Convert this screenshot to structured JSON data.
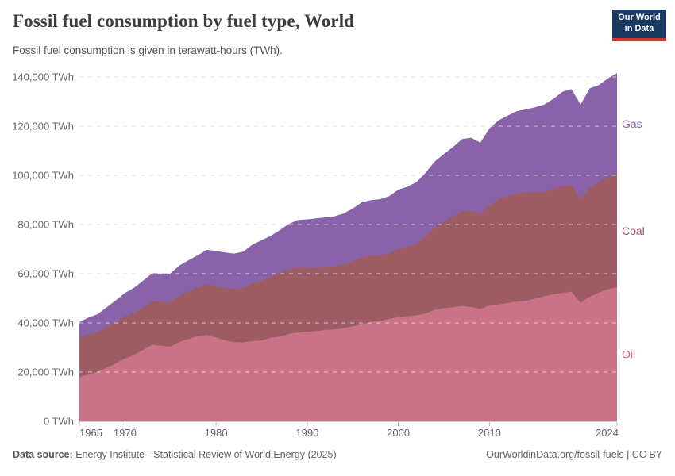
{
  "header": {
    "title": "Fossil fuel consumption by fuel type, World",
    "subtitle": "Fossil fuel consumption is given in terawatt-hours (TWh)."
  },
  "logo": {
    "line1": "Our World",
    "line2": "in Data"
  },
  "footer": {
    "source_label": "Data source:",
    "source_text": "Energy Institute - Statistical Review of World Energy (2025)",
    "credit": "OurWorldinData.org/fossil-fuels | CC BY"
  },
  "colors": {
    "oil_area": "#ca7287",
    "coal_area": "#9d5b63",
    "gas_area": "#8963a9",
    "oil_label": "#cf6a84",
    "coal_label": "#a44e63",
    "gas_label": "#8465ab",
    "logo_bg": "#1a3a62",
    "logo_accent": "#d0342c",
    "grid": "#dcdcdc",
    "axis_line": "#cccccc",
    "tick_mark": "#b5b5b5",
    "axis_text": "#666666"
  },
  "chart_data": {
    "type": "area",
    "stacked": true,
    "title": "Fossil fuel consumption by fuel type, World",
    "unit": "TWh",
    "xlim": [
      1965,
      2024
    ],
    "ylim": [
      0,
      140000
    ],
    "grid": "dashed",
    "legend_position": "right-edge-labels",
    "xticks": [
      1965,
      1970,
      1980,
      1990,
      2000,
      2010,
      2024
    ],
    "yticks": [
      0,
      20000,
      40000,
      60000,
      80000,
      100000,
      120000,
      140000
    ],
    "ytick_labels": [
      "0 TWh",
      "20,000 TWh",
      "40,000 TWh",
      "60,000 TWh",
      "80,000 TWh",
      "100,000 TWh",
      "120,000 TWh",
      "140,000 TWh"
    ],
    "years": [
      1965,
      1966,
      1967,
      1968,
      1969,
      1970,
      1971,
      1972,
      1973,
      1974,
      1975,
      1976,
      1977,
      1978,
      1979,
      1980,
      1981,
      1982,
      1983,
      1984,
      1985,
      1986,
      1987,
      1988,
      1989,
      1990,
      1991,
      1992,
      1993,
      1994,
      1995,
      1996,
      1997,
      1998,
      1999,
      2000,
      2001,
      2002,
      2003,
      2004,
      2005,
      2006,
      2007,
      2008,
      2009,
      2010,
      2011,
      2012,
      2013,
      2014,
      2015,
      2016,
      2017,
      2018,
      2019,
      2020,
      2021,
      2022,
      2023,
      2024
    ],
    "series": [
      {
        "name": "Oil",
        "values": [
          17900,
          19050,
          20150,
          21800,
          23550,
          25500,
          26950,
          29050,
          31150,
          30750,
          30350,
          32300,
          33450,
          34700,
          35050,
          34100,
          32950,
          32150,
          32050,
          32650,
          32850,
          33950,
          34450,
          35550,
          36100,
          36400,
          36600,
          37200,
          37250,
          37950,
          38550,
          39450,
          40450,
          40850,
          41650,
          42350,
          42750,
          43050,
          43850,
          45350,
          45950,
          46350,
          46900,
          46450,
          45650,
          47050,
          47450,
          48100,
          48650,
          48950,
          49950,
          50850,
          51650,
          52150,
          52700,
          48200,
          50600,
          52300,
          53700,
          54500
        ]
      },
      {
        "name": "Coal",
        "values": [
          16150,
          16300,
          16100,
          16550,
          16900,
          17100,
          17050,
          17250,
          17700,
          17750,
          18150,
          18800,
          19400,
          19750,
          20650,
          20900,
          21250,
          21700,
          22300,
          23300,
          24350,
          24800,
          25700,
          26400,
          26650,
          26200,
          25900,
          25650,
          25700,
          26000,
          26650,
          27200,
          27100,
          26700,
          26600,
          27700,
          28200,
          29050,
          31300,
          33450,
          35250,
          36900,
          38500,
          39050,
          38700,
          40750,
          42900,
          43250,
          44050,
          44150,
          43200,
          42400,
          42800,
          43600,
          43500,
          42100,
          44450,
          44900,
          45600,
          45900
        ]
      },
      {
        "name": "Gas",
        "values": [
          6300,
          6850,
          7300,
          8000,
          8750,
          9600,
          10300,
          10900,
          11350,
          11600,
          11650,
          12300,
          12650,
          13100,
          14000,
          14250,
          14400,
          14350,
          14650,
          15900,
          16400,
          16650,
          17550,
          18350,
          19100,
          19500,
          20000,
          20050,
          20400,
          20550,
          21300,
          22400,
          22350,
          22750,
          23300,
          24100,
          24400,
          25200,
          25900,
          26850,
          27500,
          28250,
          29350,
          29800,
          28900,
          31300,
          32000,
          32900,
          33400,
          33700,
          34500,
          35500,
          36600,
          38200,
          38900,
          38500,
          40300,
          39500,
          40100,
          41200
        ]
      }
    ]
  }
}
